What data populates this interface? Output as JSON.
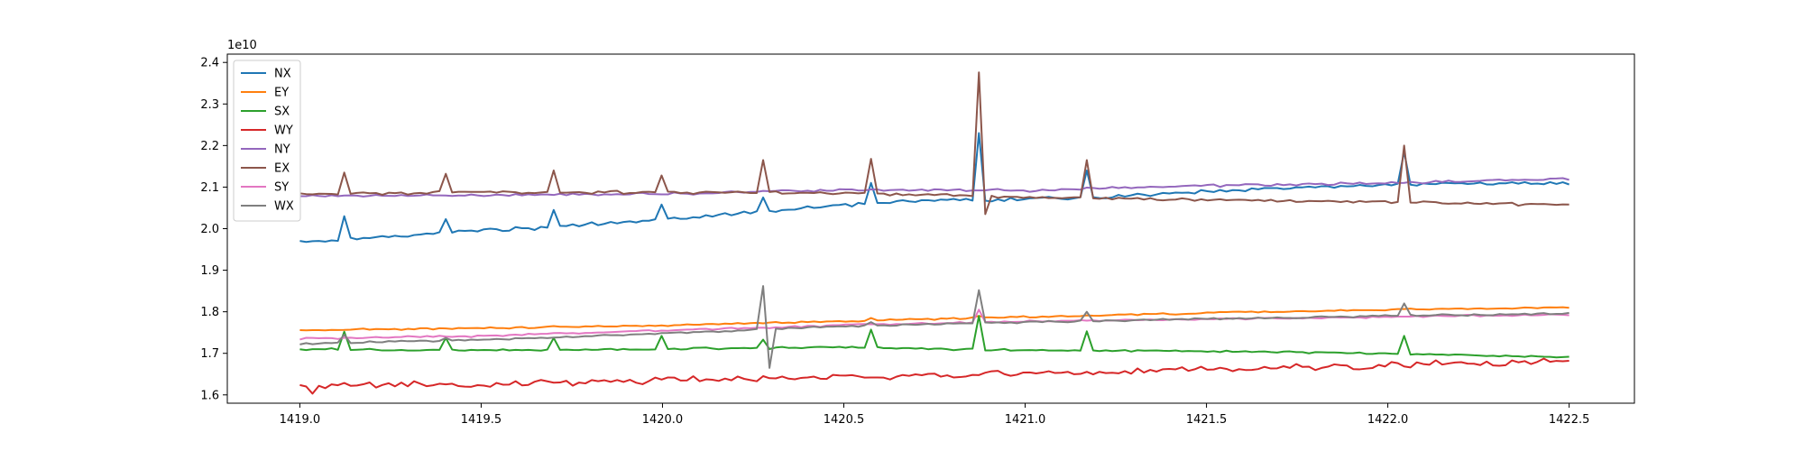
{
  "chart_data": {
    "type": "line",
    "title": "",
    "xlabel": "",
    "ylabel": "",
    "y_offset_label": "1e10",
    "xlim": [
      1418.8,
      1422.68
    ],
    "ylim": [
      1.58,
      2.42
    ],
    "x_ticks": [
      1419.0,
      1419.5,
      1420.0,
      1420.5,
      1421.0,
      1421.5,
      1422.0,
      1422.5
    ],
    "x_tick_labels": [
      "1419.0",
      "1419.5",
      "1420.0",
      "1420.5",
      "1421.0",
      "1421.5",
      "1422.0",
      "1422.5"
    ],
    "y_ticks": [
      1.6,
      1.7,
      1.8,
      1.9,
      2.0,
      2.1,
      2.2,
      2.3,
      2.4
    ],
    "y_tick_labels": [
      "1.6",
      "1.7",
      "1.8",
      "1.9",
      "2.0",
      "2.1",
      "2.2",
      "2.3",
      "2.4"
    ],
    "grid": false,
    "legend_position": "upper-left",
    "x_start": 1419.0,
    "x_end": 1422.5,
    "sample_count": 201,
    "series": [
      {
        "name": "NX",
        "color": "#1f77b4",
        "anchors": [
          [
            1419.0,
            1.967
          ],
          [
            1419.3,
            1.985
          ],
          [
            1419.6,
            2.0
          ],
          [
            1419.9,
            2.015
          ],
          [
            1420.2,
            2.035
          ],
          [
            1420.5,
            2.058
          ],
          [
            1420.8,
            2.07
          ],
          [
            1420.9,
            2.068
          ],
          [
            1421.2,
            2.075
          ],
          [
            1421.5,
            2.09
          ],
          [
            1421.8,
            2.1
          ],
          [
            1422.1,
            2.108
          ],
          [
            1422.5,
            2.108
          ]
        ],
        "noise": 0.0035,
        "spikes": [
          [
            1419.13,
            2.03
          ],
          [
            1419.4,
            2.023
          ],
          [
            1419.7,
            2.045
          ],
          [
            1420.0,
            2.058
          ],
          [
            1420.28,
            2.075
          ],
          [
            1420.58,
            2.11
          ],
          [
            1420.87,
            2.23
          ],
          [
            1421.17,
            2.14
          ],
          [
            1422.05,
            2.185
          ]
        ]
      },
      {
        "name": "EY",
        "color": "#ff7f0e",
        "anchors": [
          [
            1419.0,
            1.755
          ],
          [
            1420.0,
            1.767
          ],
          [
            1421.0,
            1.788
          ],
          [
            1421.5,
            1.797
          ],
          [
            1422.0,
            1.805
          ],
          [
            1422.5,
            1.81
          ]
        ],
        "noise": 0.0018,
        "spikes": [
          [
            1420.58,
            1.785
          ],
          [
            1420.87,
            1.79
          ]
        ]
      },
      {
        "name": "SX",
        "color": "#2ca02c",
        "anchors": [
          [
            1419.0,
            1.71
          ],
          [
            1419.5,
            1.707
          ],
          [
            1420.0,
            1.71
          ],
          [
            1420.5,
            1.715
          ],
          [
            1420.8,
            1.71
          ],
          [
            1421.5,
            1.705
          ],
          [
            1422.0,
            1.7
          ],
          [
            1422.5,
            1.69
          ]
        ],
        "noise": 0.0018,
        "spikes": [
          [
            1419.13,
            1.752
          ],
          [
            1419.4,
            1.737
          ],
          [
            1419.7,
            1.737
          ],
          [
            1420.0,
            1.742
          ],
          [
            1420.28,
            1.733
          ],
          [
            1420.58,
            1.757
          ],
          [
            1420.87,
            1.79
          ],
          [
            1421.17,
            1.753
          ],
          [
            1422.05,
            1.742
          ]
        ]
      },
      {
        "name": "WY",
        "color": "#d62728",
        "anchors": [
          [
            1419.0,
            1.62
          ],
          [
            1419.5,
            1.627
          ],
          [
            1420.0,
            1.635
          ],
          [
            1420.5,
            1.643
          ],
          [
            1421.0,
            1.652
          ],
          [
            1421.5,
            1.66
          ],
          [
            1422.0,
            1.67
          ],
          [
            1422.5,
            1.682
          ]
        ],
        "noise": 0.0065,
        "spikes": [
          [
            1419.03,
            1.603
          ]
        ]
      },
      {
        "name": "NY",
        "color": "#9467bd",
        "anchors": [
          [
            1419.0,
            2.078
          ],
          [
            1420.0,
            2.083
          ],
          [
            1420.5,
            2.093
          ],
          [
            1421.0,
            2.092
          ],
          [
            1421.5,
            2.103
          ],
          [
            1422.0,
            2.11
          ],
          [
            1422.5,
            2.12
          ]
        ],
        "noise": 0.0025,
        "spikes": []
      },
      {
        "name": "EX",
        "color": "#8c564b",
        "anchors": [
          [
            1419.0,
            2.083
          ],
          [
            1419.5,
            2.088
          ],
          [
            1420.0,
            2.087
          ],
          [
            1420.5,
            2.085
          ],
          [
            1420.8,
            2.08
          ],
          [
            1421.0,
            2.075
          ],
          [
            1421.5,
            2.07
          ],
          [
            1422.0,
            2.065
          ],
          [
            1422.5,
            2.057
          ]
        ],
        "noise": 0.003,
        "spikes": [
          [
            1419.13,
            2.135
          ],
          [
            1419.4,
            2.132
          ],
          [
            1419.7,
            2.14
          ],
          [
            1420.0,
            2.128
          ],
          [
            1420.28,
            2.165
          ],
          [
            1420.58,
            2.168
          ],
          [
            1420.87,
            2.376
          ],
          [
            1420.89,
            2.035
          ],
          [
            1421.17,
            2.165
          ],
          [
            1422.05,
            2.2
          ]
        ]
      },
      {
        "name": "SY",
        "color": "#e377c2",
        "anchors": [
          [
            1419.0,
            1.735
          ],
          [
            1419.5,
            1.742
          ],
          [
            1420.0,
            1.755
          ],
          [
            1420.5,
            1.768
          ],
          [
            1421.0,
            1.777
          ],
          [
            1421.5,
            1.782
          ],
          [
            1422.0,
            1.788
          ],
          [
            1422.5,
            1.793
          ]
        ],
        "noise": 0.0018,
        "spikes": [
          [
            1420.87,
            1.805
          ]
        ]
      },
      {
        "name": "WX",
        "color": "#7f7f7f",
        "anchors": [
          [
            1419.0,
            1.722
          ],
          [
            1419.5,
            1.733
          ],
          [
            1420.0,
            1.748
          ],
          [
            1420.5,
            1.765
          ],
          [
            1421.0,
            1.775
          ],
          [
            1421.5,
            1.783
          ],
          [
            1422.0,
            1.79
          ],
          [
            1422.5,
            1.796
          ]
        ],
        "noise": 0.0018,
        "spikes": [
          [
            1419.13,
            1.745
          ],
          [
            1419.4,
            1.737
          ],
          [
            1419.7,
            1.738
          ],
          [
            1420.28,
            1.862
          ],
          [
            1420.295,
            1.665
          ],
          [
            1420.58,
            1.775
          ],
          [
            1420.87,
            1.852
          ],
          [
            1421.17,
            1.8
          ],
          [
            1422.05,
            1.82
          ]
        ]
      }
    ]
  }
}
